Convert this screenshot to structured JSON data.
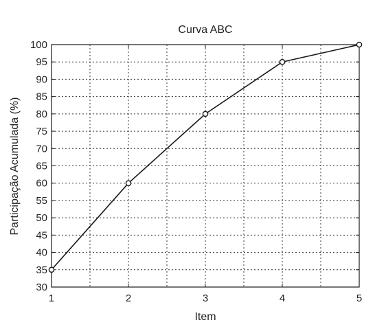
{
  "chart_data": {
    "type": "line",
    "title": "Curva ABC",
    "xlabel": "Item",
    "ylabel": "Participação Acumulada (%)",
    "x": [
      1,
      2,
      3,
      4,
      5
    ],
    "series": [
      {
        "values": [
          35,
          60,
          80,
          95,
          100
        ]
      }
    ],
    "xlim": [
      1,
      5
    ],
    "ylim": [
      30,
      100
    ],
    "xticks": [
      1,
      2,
      3,
      4,
      5
    ],
    "xtick_labels": [
      "1",
      "2",
      "3",
      "4",
      "5"
    ],
    "yticks": [
      30,
      35,
      40,
      45,
      50,
      55,
      60,
      65,
      70,
      75,
      80,
      85,
      90,
      95,
      100
    ],
    "ytick_labels": [
      "30",
      "35",
      "40",
      "45",
      "50",
      "55",
      "60",
      "65",
      "70",
      "75",
      "80",
      "85",
      "90",
      "95",
      "100"
    ],
    "x_minor_grid": [
      1.5,
      2.5,
      3.5,
      4.5
    ],
    "grid": true,
    "grid_style": "dotted",
    "marker": "circle-open",
    "line_color": "#1a1a1a",
    "axis_color": "#1a1a1a",
    "grid_color": "#333333"
  }
}
